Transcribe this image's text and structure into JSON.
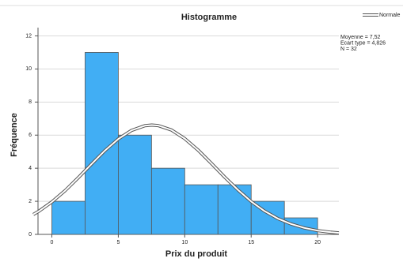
{
  "chart_data": {
    "type": "histogram",
    "title": "Histogramme",
    "x_label": "Prix du produit",
    "y_label": "Fréquence",
    "bins": [
      0,
      2.5,
      5,
      7.5,
      10,
      12.5,
      15,
      17.5,
      20
    ],
    "values": [
      2,
      11,
      6,
      4,
      3,
      3,
      2,
      1
    ],
    "color": "#41aef4",
    "xlim": [
      -1.4,
      21.6
    ],
    "ylim": [
      0,
      12.5
    ],
    "xticks": [
      0,
      5,
      10,
      15,
      20
    ],
    "yticks": [
      0,
      2,
      4,
      6,
      8,
      10,
      12
    ],
    "grid": true,
    "curve": {
      "name": "Normale",
      "color": "#555555",
      "x": [
        -1.4,
        -1,
        0,
        1,
        2,
        3,
        4,
        5,
        6,
        7,
        7.52,
        8,
        9,
        10,
        11,
        12,
        13,
        14,
        15,
        16,
        17,
        18,
        19,
        20,
        21,
        21.6
      ],
      "values": [
        1.2,
        1.39,
        1.96,
        2.65,
        3.44,
        4.26,
        5.07,
        5.77,
        6.29,
        6.57,
        6.61,
        6.58,
        6.31,
        5.79,
        5.1,
        4.3,
        3.47,
        2.69,
        1.99,
        1.41,
        0.96,
        0.63,
        0.39,
        0.23,
        0.13,
        0.09
      ]
    },
    "legend": "top-right",
    "annotations": [
      "Moyenne = 7,52",
      "Ecart type = 4,826",
      "N = 32"
    ]
  }
}
